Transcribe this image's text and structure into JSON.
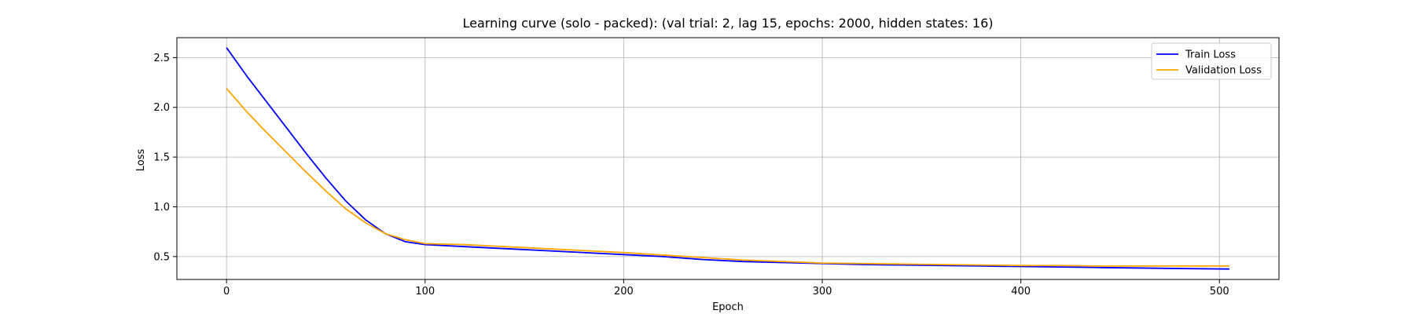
{
  "chart_data": {
    "type": "line",
    "title": "Learning curve (solo - packed): (val trial: 2, lag 15, epochs: 2000, hidden states: 16)",
    "xlabel": "Epoch",
    "ylabel": "Loss",
    "xlim": [
      -25,
      530
    ],
    "ylim": [
      0.27,
      2.7
    ],
    "xticks": [
      0,
      100,
      200,
      300,
      400,
      500
    ],
    "yticks": [
      0.5,
      1.0,
      1.5,
      2.0,
      2.5
    ],
    "xtick_labels": [
      "0",
      "100",
      "200",
      "300",
      "400",
      "500"
    ],
    "ytick_labels": [
      "0.5",
      "1.0",
      "1.5",
      "2.0",
      "2.5"
    ],
    "grid": true,
    "legend_position": "top-right",
    "series": [
      {
        "name": "Train Loss",
        "color": "#0000ff",
        "x": [
          0,
          10,
          20,
          30,
          40,
          50,
          60,
          70,
          80,
          90,
          100,
          120,
          140,
          160,
          180,
          200,
          220,
          240,
          260,
          280,
          300,
          320,
          340,
          360,
          380,
          400,
          420,
          440,
          460,
          480,
          505
        ],
        "y": [
          2.6,
          2.32,
          2.06,
          1.8,
          1.54,
          1.29,
          1.06,
          0.87,
          0.73,
          0.65,
          0.62,
          0.6,
          0.58,
          0.56,
          0.54,
          0.52,
          0.5,
          0.47,
          0.45,
          0.44,
          0.43,
          0.42,
          0.415,
          0.41,
          0.405,
          0.4,
          0.395,
          0.39,
          0.385,
          0.38,
          0.375
        ]
      },
      {
        "name": "Validation Loss",
        "color": "#ffa500",
        "x": [
          0,
          10,
          20,
          30,
          40,
          50,
          60,
          70,
          80,
          90,
          100,
          120,
          140,
          160,
          180,
          200,
          220,
          240,
          260,
          280,
          300,
          320,
          340,
          360,
          380,
          400,
          420,
          440,
          460,
          480,
          505
        ],
        "y": [
          2.19,
          1.96,
          1.75,
          1.55,
          1.35,
          1.16,
          0.98,
          0.84,
          0.73,
          0.67,
          0.63,
          0.62,
          0.6,
          0.58,
          0.56,
          0.54,
          0.515,
          0.49,
          0.465,
          0.45,
          0.435,
          0.43,
          0.425,
          0.42,
          0.415,
          0.41,
          0.41,
          0.405,
          0.405,
          0.405,
          0.405
        ]
      }
    ]
  }
}
